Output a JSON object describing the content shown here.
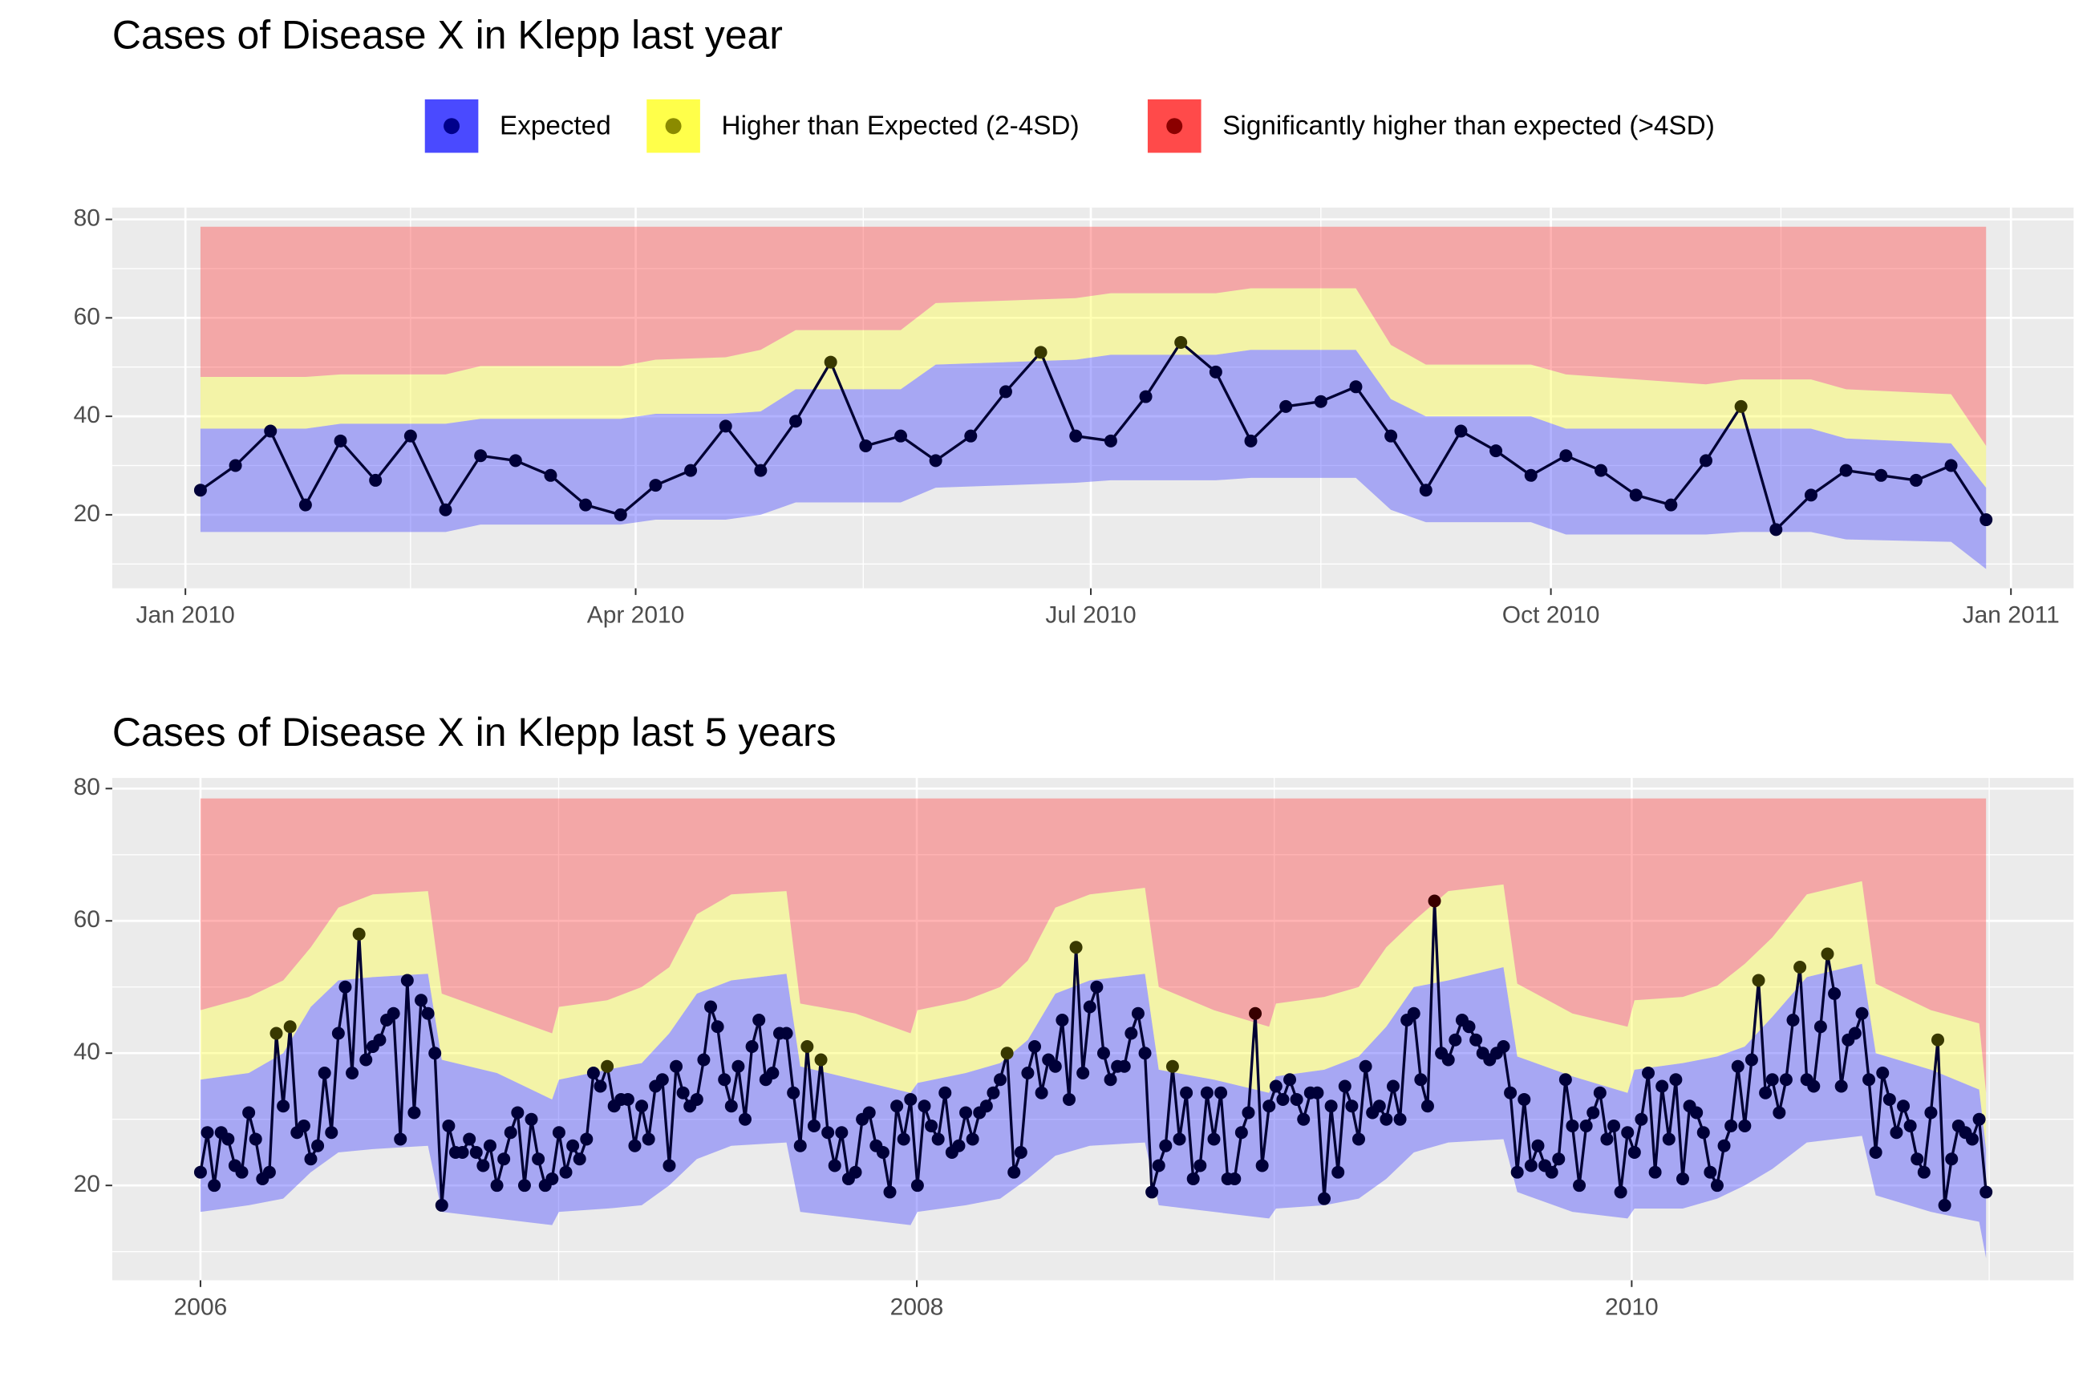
{
  "chart_data": [
    {
      "type": "line",
      "title": "Cases of Disease X in Klepp last year",
      "levels": [
        {
          "name": "Expected",
          "color": "#4040ff",
          "point_color": "#00008b"
        },
        {
          "name": "Higher than Expected (2-4SD)",
          "color": "#ffff40",
          "point_color": "#8b8b00"
        },
        {
          "name": "Significantly higher than expected (>4SD)",
          "color": "#ff4040",
          "point_color": "#8b0000"
        }
      ],
      "x": [
        1,
        2,
        3,
        4,
        5,
        6,
        7,
        8,
        9,
        10,
        11,
        12,
        13,
        14,
        15,
        16,
        17,
        18,
        19,
        20,
        21,
        22,
        23,
        24,
        25,
        26,
        27,
        28,
        29,
        30,
        31,
        32,
        33,
        34,
        35,
        36,
        37,
        38,
        39,
        40,
        41,
        42,
        43,
        44,
        45,
        46,
        47,
        48,
        49,
        50,
        51,
        52
      ],
      "values": [
        25,
        30,
        37,
        22,
        35,
        27,
        36,
        21,
        32,
        31,
        28,
        22,
        20,
        26,
        29,
        38,
        29,
        39,
        51,
        34,
        36,
        31,
        36,
        45,
        53,
        36,
        35,
        44,
        55,
        49,
        35,
        42,
        43,
        46,
        36,
        25,
        37,
        33,
        28,
        32,
        29,
        24,
        22,
        31,
        42,
        17,
        24,
        29,
        28,
        27,
        30,
        19
      ],
      "bands": {
        "x": [
          1,
          4,
          5,
          8,
          9,
          13,
          14,
          16,
          17,
          18,
          21,
          22,
          26,
          27,
          30,
          31,
          34,
          35,
          36,
          39,
          40,
          44,
          45,
          47,
          48,
          51,
          52
        ],
        "lower": [
          16.5,
          16.5,
          16.5,
          16.5,
          18,
          18,
          19,
          19,
          20,
          22.5,
          22.5,
          25.5,
          26.5,
          27,
          27,
          27.5,
          27.5,
          21,
          18.5,
          18.5,
          16,
          16,
          16.5,
          16.5,
          15,
          14.5,
          9
        ],
        "upper_2sd": [
          37.5,
          37.5,
          38.5,
          38.5,
          39.5,
          39.5,
          40.5,
          40.5,
          41,
          45.5,
          45.5,
          50.5,
          51.5,
          52.5,
          52.5,
          53.5,
          53.5,
          43.5,
          40,
          40,
          37.5,
          37.5,
          37.5,
          37.5,
          35.5,
          34.5,
          25.5
        ],
        "upper_4sd": [
          48,
          48,
          48.5,
          48.5,
          50.2,
          50.2,
          51.5,
          52,
          53.5,
          57.5,
          57.5,
          63,
          64,
          65,
          65,
          66,
          66,
          54.5,
          50.5,
          50.5,
          48.5,
          46.5,
          47.5,
          47.5,
          45.5,
          44.5,
          34
        ],
        "top": 78.5
      },
      "xlim": [
        -1.52,
        54.5
      ],
      "xticks": [
        {
          "value": 0.57,
          "label": "Jan 2010"
        },
        {
          "value": 13.43,
          "label": "Apr 2010"
        },
        {
          "value": 26.43,
          "label": "Jul 2010"
        },
        {
          "value": 39.57,
          "label": "Oct 2010"
        },
        {
          "value": 52.71,
          "label": "Jan 2011"
        }
      ],
      "ylim": [
        5.07,
        82.4
      ],
      "yticks": [
        20,
        40,
        60,
        80
      ],
      "grid": true
    },
    {
      "type": "line",
      "title": "Cases of Disease X in Klepp last 5 years",
      "x": [
        1,
        2,
        3,
        4,
        5,
        6,
        7,
        8,
        9,
        10,
        11,
        12,
        13,
        14,
        15,
        16,
        17,
        18,
        19,
        20,
        21,
        22,
        23,
        24,
        25,
        26,
        27,
        28,
        29,
        30,
        31,
        32,
        33,
        34,
        35,
        36,
        37,
        38,
        39,
        40,
        41,
        42,
        43,
        44,
        45,
        46,
        47,
        48,
        49,
        50,
        51,
        52,
        53,
        54,
        55,
        56,
        57,
        58,
        59,
        60,
        61,
        62,
        63,
        64,
        65,
        66,
        67,
        68,
        69,
        70,
        71,
        72,
        73,
        74,
        75,
        76,
        77,
        78,
        79,
        80,
        81,
        82,
        83,
        84,
        85,
        86,
        87,
        88,
        89,
        90,
        91,
        92,
        93,
        94,
        95,
        96,
        97,
        98,
        99,
        100,
        101,
        102,
        103,
        104,
        105,
        106,
        107,
        108,
        109,
        110,
        111,
        112,
        113,
        114,
        115,
        116,
        117,
        118,
        119,
        120,
        121,
        122,
        123,
        124,
        125,
        126,
        127,
        128,
        129,
        130,
        131,
        132,
        133,
        134,
        135,
        136,
        137,
        138,
        139,
        140,
        141,
        142,
        143,
        144,
        145,
        146,
        147,
        148,
        149,
        150,
        151,
        152,
        153,
        154,
        155,
        156,
        157,
        158,
        159,
        160,
        161,
        162,
        163,
        164,
        165,
        166,
        167,
        168,
        169,
        170,
        171,
        172,
        173,
        174,
        175,
        176,
        177,
        178,
        179,
        180,
        181,
        182,
        183,
        184,
        185,
        186,
        187,
        188,
        189,
        190,
        191,
        192,
        193,
        194,
        195,
        196,
        197,
        198,
        199,
        200,
        201,
        202,
        203,
        204,
        205,
        206,
        207,
        208,
        209,
        210,
        211,
        212,
        213,
        214,
        215,
        216,
        217,
        218,
        219,
        220,
        221,
        222,
        223,
        224,
        225,
        226,
        227,
        228,
        229,
        230,
        231,
        232,
        233,
        234,
        235,
        236,
        237,
        238,
        239,
        240,
        241,
        242,
        243,
        244,
        245,
        246,
        247,
        248,
        249,
        250,
        251,
        252,
        253,
        254,
        255,
        256,
        257,
        258,
        259,
        260
      ],
      "values": [
        22,
        28,
        20,
        28,
        27,
        23,
        22,
        31,
        27,
        21,
        22,
        43,
        32,
        44,
        28,
        29,
        24,
        26,
        37,
        28,
        43,
        50,
        37,
        58,
        39,
        41,
        42,
        45,
        46,
        27,
        51,
        31,
        48,
        46,
        40,
        17,
        29,
        25,
        25,
        27,
        25,
        23,
        26,
        20,
        24,
        28,
        31,
        20,
        30,
        24,
        20,
        21,
        28,
        22,
        26,
        24,
        27,
        37,
        35,
        38,
        32,
        33,
        33,
        26,
        32,
        27,
        35,
        36,
        23,
        38,
        34,
        32,
        33,
        39,
        47,
        44,
        36,
        32,
        38,
        30,
        41,
        45,
        36,
        37,
        43,
        43,
        34,
        26,
        41,
        29,
        39,
        28,
        23,
        28,
        21,
        22,
        30,
        31,
        26,
        25,
        19,
        32,
        27,
        33,
        20,
        32,
        29,
        27,
        34,
        25,
        26,
        31,
        27,
        31,
        32,
        34,
        36,
        40,
        22,
        25,
        37,
        41,
        34,
        39,
        38,
        45,
        33,
        56,
        37,
        47,
        50,
        40,
        36,
        38,
        38,
        43,
        46,
        40,
        19,
        23,
        26,
        38,
        27,
        34,
        21,
        23,
        34,
        27,
        34,
        21,
        21,
        28,
        31,
        46,
        23,
        32,
        35,
        33,
        36,
        33,
        30,
        34,
        34,
        18,
        32,
        22,
        35,
        32,
        27,
        38,
        31,
        32,
        30,
        35,
        30,
        45,
        46,
        36,
        32,
        63,
        40,
        39,
        42,
        45,
        44,
        42,
        40,
        39,
        40,
        41,
        34,
        22,
        33,
        23,
        26,
        23,
        22,
        24,
        36,
        29,
        20,
        29,
        31,
        34,
        27,
        29,
        19,
        28,
        25,
        30,
        37,
        22,
        35,
        27,
        36,
        21,
        32,
        31,
        28,
        22,
        20,
        26,
        29,
        38,
        29,
        39,
        51,
        34,
        36,
        31,
        36,
        45,
        53,
        36,
        35,
        44,
        55,
        49,
        35,
        42,
        43,
        46,
        36,
        25,
        37,
        33,
        28,
        32,
        29,
        24,
        22,
        31,
        42,
        17,
        24,
        29,
        28,
        27,
        30,
        19
      ],
      "bands": {
        "x": [
          1,
          8,
          13,
          17,
          21,
          26,
          34,
          36,
          44,
          52,
          53,
          60,
          65,
          69,
          73,
          78,
          86,
          88,
          96,
          104,
          105,
          112,
          117,
          121,
          125,
          130,
          138,
          140,
          148,
          156,
          157,
          164,
          169,
          173,
          177,
          182,
          190,
          192,
          200,
          208,
          209,
          216,
          221,
          225,
          229,
          234,
          242,
          244,
          252,
          259,
          260
        ],
        "lower": [
          16,
          17,
          18,
          22,
          25,
          25.5,
          26,
          16,
          15,
          14,
          16,
          16.5,
          17,
          20,
          24,
          26,
          26.5,
          16,
          15,
          14,
          16,
          17,
          18,
          21,
          24.5,
          26,
          26.5,
          17,
          16,
          15,
          16.5,
          17,
          18,
          21,
          25,
          26.5,
          27,
          19,
          16,
          15,
          16.5,
          16.5,
          18,
          20,
          22.5,
          26.5,
          27.5,
          18.5,
          16,
          14.5,
          9
        ],
        "upper_2sd": [
          36,
          37,
          40,
          47,
          51,
          51.5,
          52,
          39,
          37,
          33,
          36,
          37.5,
          38.5,
          43,
          49,
          51,
          52,
          38,
          36,
          34,
          35.5,
          37,
          38.5,
          42,
          49,
          51,
          52,
          37.5,
          36,
          34,
          36.5,
          37.5,
          39.5,
          44,
          50,
          51,
          53,
          39.5,
          36.5,
          34,
          37.5,
          38.5,
          39.5,
          41,
          45.5,
          51.5,
          53.5,
          40,
          37.5,
          34.5,
          25.5
        ],
        "upper_4sd": [
          46.5,
          48.5,
          51,
          56,
          62,
          64,
          64.5,
          49,
          46,
          43,
          47,
          48,
          50,
          53,
          61,
          64,
          64.5,
          47.5,
          46,
          43,
          46.5,
          48,
          50,
          54,
          62,
          64,
          65,
          50,
          46.5,
          44,
          47.5,
          48.5,
          50,
          56,
          60,
          64.5,
          65.5,
          50.5,
          46,
          44,
          48,
          48.5,
          50.2,
          53.5,
          57.5,
          64,
          66,
          50.5,
          46.5,
          44.5,
          34
        ],
        "top": 78.5
      },
      "xlim": [
        -11.8,
        272.7
      ],
      "xticks": [
        {
          "value": 1,
          "label": "2006"
        },
        {
          "value": 104.9,
          "label": "2008"
        },
        {
          "value": 208.6,
          "label": "2010"
        }
      ],
      "ylim": [
        5.66,
        81.6
      ],
      "yticks": [
        20,
        40,
        60,
        80
      ],
      "grid": true
    }
  ]
}
